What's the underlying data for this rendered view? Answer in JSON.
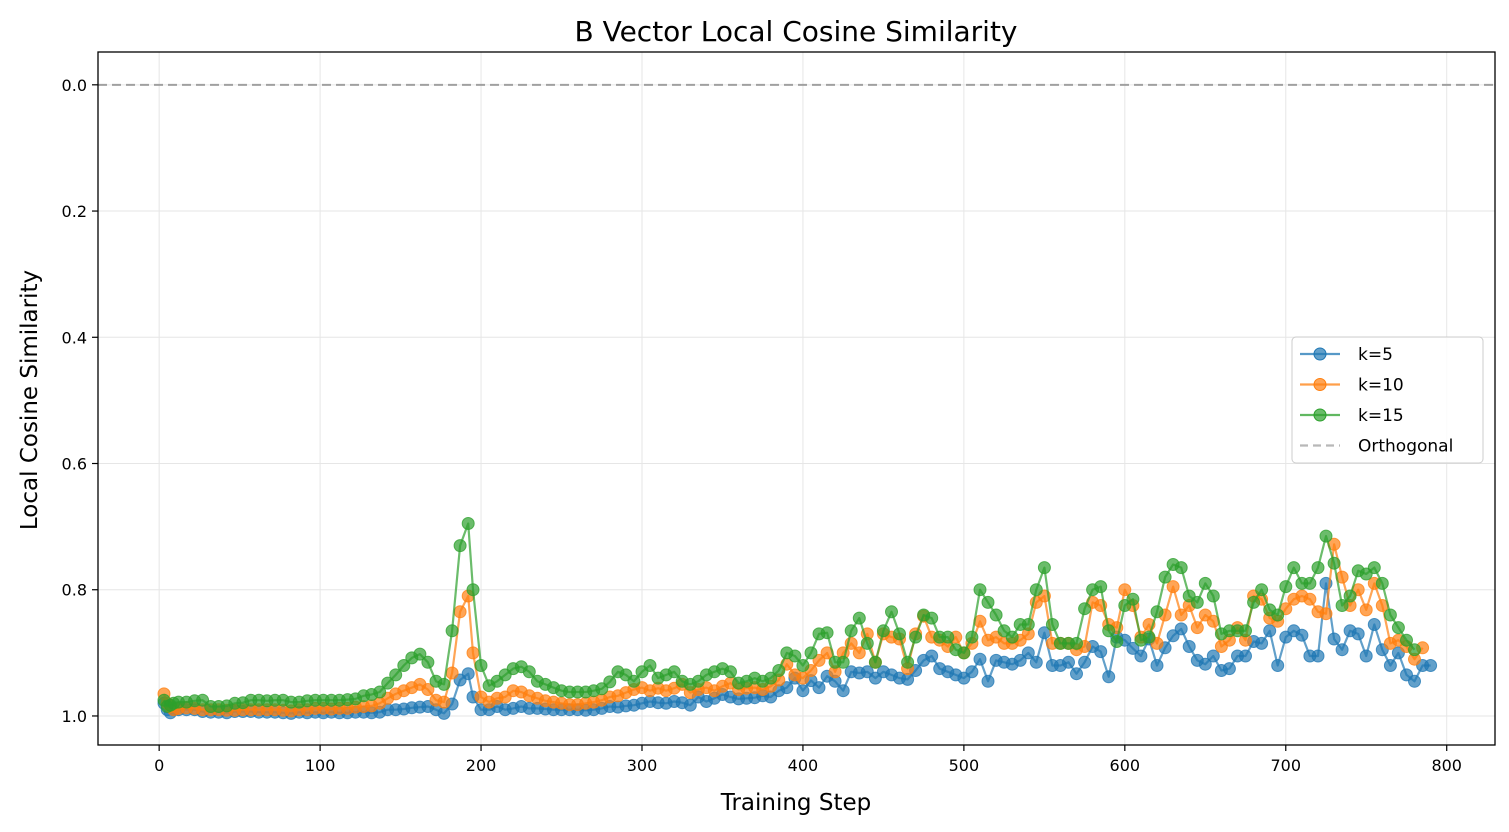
{
  "chart_data": {
    "type": "line",
    "title": "B Vector Local Cosine Similarity",
    "xlabel": "Training Step",
    "ylabel": "Local Cosine Similarity",
    "xlim": [
      -38,
      830
    ],
    "ylim": [
      1.046,
      -0.052
    ],
    "y_inverted": true,
    "grid": true,
    "legend_location": "center-right",
    "x_ticks": [
      0,
      100,
      200,
      300,
      400,
      500,
      600,
      700,
      800
    ],
    "x_tick_labels": [
      "0",
      "100",
      "200",
      "300",
      "400",
      "500",
      "600",
      "700",
      "800"
    ],
    "y_ticks": [
      0.0,
      0.2,
      0.4,
      0.6,
      0.8,
      1.0
    ],
    "y_tick_labels": [
      "0.0",
      "0.2",
      "0.4",
      "0.6",
      "0.8",
      "1.0"
    ],
    "reference_line": {
      "name": "Orthogonal",
      "y": 0.0,
      "color": "#a0a0a0",
      "style": "dashed"
    },
    "series": [
      {
        "name": "k=5",
        "color": "#1f77b4",
        "x": [
          3,
          5,
          7,
          9,
          12,
          17,
          22,
          27,
          32,
          37,
          42,
          47,
          52,
          57,
          62,
          67,
          72,
          77,
          82,
          87,
          92,
          97,
          102,
          107,
          112,
          117,
          122,
          127,
          132,
          137,
          142,
          147,
          152,
          157,
          162,
          167,
          172,
          177,
          182,
          187,
          192,
          195,
          200,
          205,
          210,
          215,
          220,
          225,
          230,
          235,
          240,
          245,
          250,
          255,
          260,
          265,
          270,
          275,
          280,
          285,
          290,
          295,
          300,
          305,
          310,
          315,
          320,
          325,
          330,
          335,
          340,
          345,
          350,
          355,
          360,
          365,
          370,
          375,
          380,
          385,
          390,
          395,
          400,
          405,
          410,
          415,
          420,
          425,
          430,
          435,
          440,
          445,
          450,
          455,
          460,
          465,
          470,
          475,
          480,
          485,
          490,
          495,
          500,
          505,
          510,
          515,
          520,
          525,
          530,
          535,
          540,
          545,
          550,
          555,
          560,
          565,
          570,
          575,
          580,
          585,
          590,
          595,
          600,
          605,
          610,
          615,
          620,
          625,
          630,
          635,
          640,
          645,
          650,
          655,
          660,
          665,
          670,
          675,
          680,
          685,
          690,
          695,
          700,
          705,
          710,
          715,
          720,
          725,
          730,
          735,
          740,
          745,
          750,
          755,
          760,
          765,
          770,
          775,
          780,
          785,
          790
        ],
        "values": [
          0.98,
          0.99,
          0.995,
          0.99,
          0.99,
          0.99,
          0.99,
          0.993,
          0.994,
          0.994,
          0.995,
          0.993,
          0.993,
          0.993,
          0.994,
          0.994,
          0.994,
          0.995,
          0.996,
          0.994,
          0.995,
          0.994,
          0.995,
          0.994,
          0.995,
          0.995,
          0.994,
          0.994,
          0.995,
          0.994,
          0.99,
          0.99,
          0.989,
          0.987,
          0.986,
          0.985,
          0.99,
          0.996,
          0.981,
          0.943,
          0.933,
          0.97,
          0.99,
          0.99,
          0.985,
          0.99,
          0.988,
          0.985,
          0.988,
          0.988,
          0.989,
          0.99,
          0.99,
          0.99,
          0.99,
          0.991,
          0.99,
          0.988,
          0.985,
          0.986,
          0.984,
          0.983,
          0.98,
          0.977,
          0.979,
          0.98,
          0.977,
          0.979,
          0.983,
          0.97,
          0.977,
          0.972,
          0.966,
          0.97,
          0.973,
          0.972,
          0.971,
          0.968,
          0.97,
          0.96,
          0.955,
          0.94,
          0.96,
          0.944,
          0.955,
          0.937,
          0.945,
          0.96,
          0.93,
          0.932,
          0.93,
          0.94,
          0.93,
          0.935,
          0.94,
          0.942,
          0.928,
          0.912,
          0.905,
          0.925,
          0.93,
          0.935,
          0.94,
          0.93,
          0.91,
          0.945,
          0.912,
          0.915,
          0.918,
          0.912,
          0.9,
          0.915,
          0.868,
          0.92,
          0.92,
          0.915,
          0.933,
          0.915,
          0.89,
          0.898,
          0.938,
          0.875,
          0.88,
          0.893,
          0.905,
          0.878,
          0.92,
          0.892,
          0.873,
          0.862,
          0.89,
          0.912,
          0.918,
          0.905,
          0.928,
          0.925,
          0.905,
          0.905,
          0.882,
          0.885,
          0.865,
          0.92,
          0.875,
          0.865,
          0.872,
          0.905,
          0.905,
          0.79,
          0.878,
          0.895,
          0.865,
          0.87,
          0.905,
          0.855,
          0.895,
          0.92,
          0.9,
          0.935,
          0.945,
          0.92,
          0.92
        ]
      },
      {
        "name": "k=10",
        "color": "#ff7f0e",
        "x": [
          3,
          5,
          7,
          9,
          12,
          17,
          22,
          27,
          32,
          37,
          42,
          47,
          52,
          57,
          62,
          67,
          72,
          77,
          82,
          87,
          92,
          97,
          102,
          107,
          112,
          117,
          122,
          127,
          132,
          137,
          142,
          147,
          152,
          157,
          162,
          167,
          172,
          177,
          182,
          187,
          192,
          195,
          200,
          205,
          210,
          215,
          220,
          225,
          230,
          235,
          240,
          245,
          250,
          255,
          260,
          265,
          270,
          275,
          280,
          285,
          290,
          295,
          300,
          305,
          310,
          315,
          320,
          325,
          330,
          335,
          340,
          345,
          350,
          355,
          360,
          365,
          370,
          375,
          380,
          385,
          390,
          395,
          400,
          405,
          410,
          415,
          420,
          425,
          430,
          435,
          440,
          445,
          450,
          455,
          460,
          465,
          470,
          475,
          480,
          485,
          490,
          495,
          500,
          505,
          510,
          515,
          520,
          525,
          530,
          535,
          540,
          545,
          550,
          555,
          560,
          565,
          570,
          575,
          580,
          585,
          590,
          595,
          600,
          605,
          610,
          615,
          620,
          625,
          630,
          635,
          640,
          645,
          650,
          655,
          660,
          665,
          670,
          675,
          680,
          685,
          690,
          695,
          700,
          705,
          710,
          715,
          720,
          725,
          730,
          735,
          740,
          745,
          750,
          755,
          760,
          765,
          770,
          775,
          780,
          785
        ],
        "values": [
          0.965,
          0.98,
          0.985,
          0.99,
          0.988,
          0.987,
          0.988,
          0.99,
          0.99,
          0.99,
          0.991,
          0.991,
          0.99,
          0.99,
          0.99,
          0.99,
          0.99,
          0.991,
          0.992,
          0.99,
          0.99,
          0.988,
          0.988,
          0.989,
          0.988,
          0.988,
          0.986,
          0.985,
          0.984,
          0.98,
          0.972,
          0.965,
          0.96,
          0.955,
          0.95,
          0.958,
          0.975,
          0.978,
          0.932,
          0.835,
          0.81,
          0.9,
          0.97,
          0.978,
          0.972,
          0.97,
          0.96,
          0.962,
          0.968,
          0.972,
          0.976,
          0.978,
          0.98,
          0.982,
          0.982,
          0.98,
          0.978,
          0.975,
          0.97,
          0.968,
          0.963,
          0.958,
          0.955,
          0.96,
          0.956,
          0.96,
          0.956,
          0.95,
          0.963,
          0.958,
          0.955,
          0.96,
          0.953,
          0.948,
          0.958,
          0.956,
          0.955,
          0.958,
          0.953,
          0.943,
          0.918,
          0.935,
          0.94,
          0.928,
          0.912,
          0.9,
          0.93,
          0.9,
          0.885,
          0.9,
          0.87,
          0.915,
          0.87,
          0.875,
          0.878,
          0.925,
          0.87,
          0.842,
          0.875,
          0.88,
          0.89,
          0.875,
          0.9,
          0.885,
          0.85,
          0.88,
          0.875,
          0.885,
          0.885,
          0.88,
          0.87,
          0.82,
          0.81,
          0.885,
          0.885,
          0.885,
          0.895,
          0.89,
          0.82,
          0.825,
          0.855,
          0.86,
          0.8,
          0.825,
          0.875,
          0.855,
          0.885,
          0.84,
          0.795,
          0.84,
          0.825,
          0.86,
          0.84,
          0.85,
          0.89,
          0.88,
          0.86,
          0.88,
          0.81,
          0.815,
          0.845,
          0.85,
          0.83,
          0.815,
          0.81,
          0.815,
          0.835,
          0.838,
          0.728,
          0.78,
          0.825,
          0.8,
          0.832,
          0.79,
          0.825,
          0.885,
          0.88,
          0.89,
          0.91,
          0.892
        ]
      },
      {
        "name": "k=15",
        "color": "#2ca02c",
        "x": [
          3,
          5,
          7,
          9,
          12,
          17,
          22,
          27,
          32,
          37,
          42,
          47,
          52,
          57,
          62,
          67,
          72,
          77,
          82,
          87,
          92,
          97,
          102,
          107,
          112,
          117,
          122,
          127,
          132,
          137,
          142,
          147,
          152,
          157,
          162,
          167,
          172,
          177,
          182,
          187,
          192,
          195,
          200,
          205,
          210,
          215,
          220,
          225,
          230,
          235,
          240,
          245,
          250,
          255,
          260,
          265,
          270,
          275,
          280,
          285,
          290,
          295,
          300,
          305,
          310,
          315,
          320,
          325,
          330,
          335,
          340,
          345,
          350,
          355,
          360,
          365,
          370,
          375,
          380,
          385,
          390,
          395,
          400,
          405,
          410,
          415,
          420,
          425,
          430,
          435,
          440,
          445,
          450,
          455,
          460,
          465,
          470,
          475,
          480,
          485,
          490,
          495,
          500,
          505,
          510,
          515,
          520,
          525,
          530,
          535,
          540,
          545,
          550,
          555,
          560,
          565,
          570,
          575,
          580,
          585,
          590,
          595,
          600,
          605,
          610,
          615,
          620,
          625,
          630,
          635,
          640,
          645,
          650,
          655,
          660,
          665,
          670,
          675,
          680,
          685,
          690,
          695,
          700,
          705,
          710,
          715,
          720,
          725,
          730,
          735,
          740,
          745,
          750,
          755,
          760,
          765,
          770,
          775,
          780
        ],
        "values": [
          0.975,
          0.985,
          0.983,
          0.98,
          0.978,
          0.978,
          0.976,
          0.975,
          0.985,
          0.985,
          0.984,
          0.98,
          0.979,
          0.975,
          0.975,
          0.976,
          0.975,
          0.975,
          0.978,
          0.978,
          0.976,
          0.975,
          0.975,
          0.975,
          0.975,
          0.974,
          0.973,
          0.968,
          0.966,
          0.962,
          0.948,
          0.935,
          0.92,
          0.908,
          0.902,
          0.915,
          0.945,
          0.95,
          0.865,
          0.73,
          0.695,
          0.8,
          0.92,
          0.952,
          0.945,
          0.935,
          0.925,
          0.922,
          0.93,
          0.945,
          0.95,
          0.955,
          0.96,
          0.962,
          0.962,
          0.962,
          0.96,
          0.957,
          0.946,
          0.93,
          0.935,
          0.945,
          0.93,
          0.92,
          0.94,
          0.935,
          0.93,
          0.945,
          0.95,
          0.945,
          0.935,
          0.93,
          0.925,
          0.93,
          0.948,
          0.945,
          0.94,
          0.945,
          0.94,
          0.928,
          0.9,
          0.905,
          0.92,
          0.9,
          0.87,
          0.868,
          0.915,
          0.915,
          0.865,
          0.845,
          0.885,
          0.915,
          0.865,
          0.835,
          0.87,
          0.915,
          0.875,
          0.84,
          0.845,
          0.875,
          0.875,
          0.895,
          0.9,
          0.875,
          0.8,
          0.82,
          0.84,
          0.865,
          0.875,
          0.855,
          0.855,
          0.8,
          0.765,
          0.855,
          0.885,
          0.885,
          0.885,
          0.83,
          0.8,
          0.795,
          0.865,
          0.882,
          0.825,
          0.815,
          0.88,
          0.875,
          0.835,
          0.78,
          0.76,
          0.765,
          0.81,
          0.82,
          0.79,
          0.81,
          0.87,
          0.865,
          0.865,
          0.865,
          0.82,
          0.8,
          0.832,
          0.84,
          0.795,
          0.765,
          0.79,
          0.79,
          0.765,
          0.715,
          0.758,
          0.825,
          0.81,
          0.77,
          0.775,
          0.765,
          0.79,
          0.84,
          0.86,
          0.88,
          0.895
        ]
      }
    ]
  }
}
